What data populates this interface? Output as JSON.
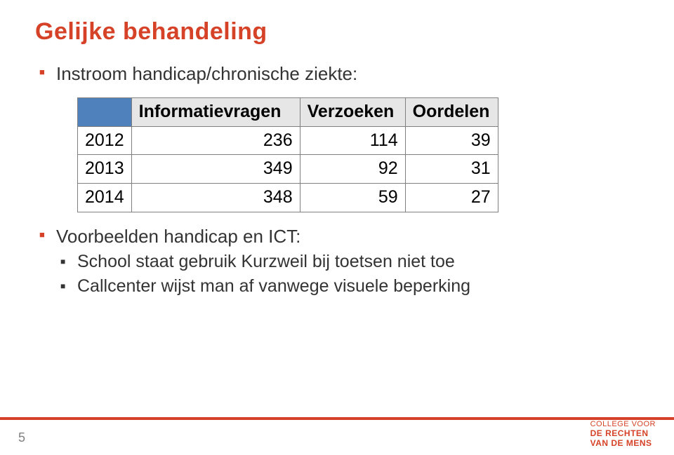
{
  "palette": {
    "accent": "#d64227",
    "headerCell": "#4f81bd",
    "text": "#333333",
    "muted": "#808080",
    "tableHeaderFill": "#e6e6e6"
  },
  "title": "Gelijke behandeling",
  "bullets": {
    "intro": "Instroom handicap/chronische ziekte:",
    "examplesLabel": "Voorbeelden handicap en ICT:",
    "examples": [
      "School staat gebruik Kurzweil bij toetsen niet toe",
      "Callcenter wijst man af vanwege visuele beperking"
    ]
  },
  "table": {
    "columns": [
      "Informatievragen",
      "Verzoeken",
      "Oordelen"
    ],
    "rows": [
      {
        "year": "2012",
        "cells": [
          "236",
          "114",
          "39"
        ]
      },
      {
        "year": "2013",
        "cells": [
          "349",
          "92",
          "31"
        ]
      },
      {
        "year": "2014",
        "cells": [
          "348",
          "59",
          "27"
        ]
      }
    ]
  },
  "footer": {
    "page": "5",
    "logo": {
      "line1": "COLLEGE VOOR",
      "line2": "DE RECHTEN",
      "line3": "VAN DE MENS"
    }
  }
}
